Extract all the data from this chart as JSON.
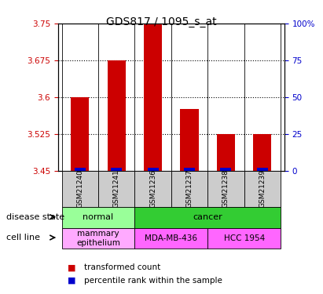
{
  "title": "GDS817 / 1095_s_at",
  "samples": [
    "GSM21240",
    "GSM21241",
    "GSM21236",
    "GSM21237",
    "GSM21238",
    "GSM21239"
  ],
  "transformed_counts": [
    3.6,
    3.675,
    3.75,
    3.575,
    3.525,
    3.525
  ],
  "percentile_ranks": [
    0,
    0,
    0,
    0,
    0,
    0
  ],
  "ylim_left": [
    3.45,
    3.75
  ],
  "ylim_right": [
    0,
    100
  ],
  "yticks_left": [
    3.45,
    3.525,
    3.6,
    3.675,
    3.75
  ],
  "ytick_labels_left": [
    "3.45",
    "3.525",
    "3.6",
    "3.675",
    "3.75"
  ],
  "yticks_right": [
    0,
    25,
    50,
    75,
    100
  ],
  "ytick_labels_right": [
    "0",
    "25",
    "50",
    "75",
    "100%"
  ],
  "bar_color": "#cc0000",
  "percentile_color": "#0000cc",
  "disease_state": [
    {
      "label": "normal",
      "cols": [
        0,
        1
      ],
      "color": "#99ff99"
    },
    {
      "label": "cancer",
      "cols": [
        2,
        3,
        4,
        5
      ],
      "color": "#33cc33"
    }
  ],
  "cell_line": [
    {
      "label": "mammary\nepithelium",
      "cols": [
        0,
        1
      ],
      "color": "#ffaaff"
    },
    {
      "label": "MDA-MB-436",
      "cols": [
        2,
        3
      ],
      "color": "#ff66ff"
    },
    {
      "label": "HCC 1954",
      "cols": [
        4,
        5
      ],
      "color": "#ff66ff"
    }
  ],
  "left_label_disease": "disease state",
  "left_label_cell": "cell line",
  "legend_items": [
    {
      "color": "#cc0000",
      "label": "transformed count"
    },
    {
      "color": "#0000cc",
      "label": "percentile rank within the sample"
    }
  ],
  "sample_col_bg": "#cccccc",
  "grid_color": "#000000",
  "dotted_ticks": [
    3.525,
    3.6,
    3.675
  ]
}
